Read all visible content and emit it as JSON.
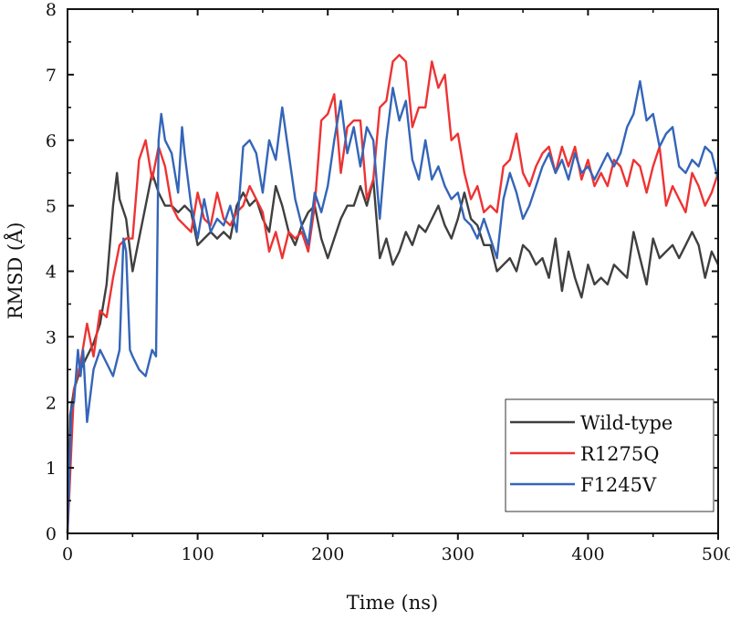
{
  "chart_data": {
    "type": "line",
    "title": "",
    "xlabel": "Time (ns)",
    "ylabel": "RMSD (Å)",
    "xlim": [
      0,
      500
    ],
    "ylim": [
      0,
      8
    ],
    "xticks": [
      "0",
      "100",
      "200",
      "300",
      "400",
      "500"
    ],
    "yticks": [
      "0",
      "1",
      "2",
      "3",
      "4",
      "5",
      "6",
      "7",
      "8"
    ],
    "grid": false,
    "legend_position": "bottom-right",
    "series": [
      {
        "name": "Wild-type",
        "color": "#3f3f3f",
        "x": [
          0,
          2,
          5,
          10,
          15,
          20,
          25,
          30,
          35,
          38,
          40,
          45,
          50,
          55,
          60,
          65,
          70,
          75,
          80,
          85,
          90,
          95,
          100,
          105,
          110,
          115,
          120,
          125,
          130,
          135,
          140,
          145,
          150,
          155,
          160,
          165,
          170,
          175,
          180,
          185,
          190,
          195,
          200,
          205,
          210,
          215,
          220,
          225,
          230,
          235,
          240,
          245,
          250,
          255,
          260,
          265,
          270,
          275,
          280,
          285,
          290,
          295,
          300,
          305,
          310,
          315,
          320,
          325,
          330,
          335,
          340,
          345,
          350,
          355,
          360,
          365,
          370,
          375,
          380,
          385,
          390,
          395,
          400,
          405,
          410,
          415,
          420,
          425,
          430,
          435,
          440,
          445,
          450,
          455,
          460,
          465,
          470,
          475,
          480,
          485,
          490,
          495,
          500
        ],
        "y": [
          0,
          1.8,
          2.2,
          2.5,
          2.7,
          2.9,
          3.2,
          3.8,
          5.0,
          5.5,
          5.1,
          4.8,
          4.0,
          4.5,
          5.0,
          5.5,
          5.2,
          5.0,
          5.0,
          4.9,
          5.0,
          4.9,
          4.4,
          4.5,
          4.6,
          4.5,
          4.6,
          4.5,
          5.0,
          5.2,
          5.0,
          5.1,
          4.8,
          4.6,
          5.3,
          5.0,
          4.6,
          4.4,
          4.7,
          4.9,
          5.0,
          4.5,
          4.2,
          4.5,
          4.8,
          5.0,
          5.0,
          5.3,
          5.0,
          5.4,
          4.2,
          4.5,
          4.1,
          4.3,
          4.6,
          4.4,
          4.7,
          4.6,
          4.8,
          5.0,
          4.7,
          4.5,
          4.8,
          5.2,
          4.8,
          4.7,
          4.4,
          4.4,
          4.0,
          4.1,
          4.2,
          4.0,
          4.4,
          4.3,
          4.1,
          4.2,
          3.9,
          4.5,
          3.7,
          4.3,
          3.9,
          3.6,
          4.1,
          3.8,
          3.9,
          3.8,
          4.1,
          4.0,
          3.9,
          4.6,
          4.2,
          3.8,
          4.5,
          4.2,
          4.3,
          4.4,
          4.2,
          4.4,
          4.6,
          4.4,
          3.9,
          4.3,
          4.1
        ]
      },
      {
        "name": "R1275Q",
        "color": "#ee3333",
        "x": [
          0,
          5,
          10,
          15,
          20,
          25,
          30,
          35,
          40,
          45,
          50,
          55,
          60,
          65,
          70,
          75,
          80,
          85,
          90,
          95,
          100,
          105,
          110,
          115,
          120,
          125,
          130,
          135,
          140,
          145,
          150,
          155,
          160,
          165,
          170,
          175,
          180,
          185,
          190,
          195,
          200,
          205,
          210,
          215,
          220,
          225,
          230,
          235,
          240,
          245,
          250,
          255,
          260,
          265,
          270,
          275,
          280,
          285,
          290,
          295,
          300,
          305,
          310,
          315,
          320,
          325,
          330,
          335,
          340,
          345,
          350,
          355,
          360,
          365,
          370,
          375,
          380,
          385,
          390,
          395,
          400,
          405,
          410,
          415,
          420,
          425,
          430,
          435,
          440,
          445,
          450,
          455,
          460,
          465,
          470,
          475,
          480,
          485,
          490,
          495,
          500
        ],
        "y": [
          0,
          2.2,
          2.6,
          3.2,
          2.7,
          3.4,
          3.3,
          3.9,
          4.4,
          4.5,
          4.5,
          5.7,
          6.0,
          5.4,
          5.9,
          5.6,
          5.0,
          4.8,
          4.7,
          4.6,
          5.2,
          4.8,
          4.7,
          5.2,
          4.8,
          4.7,
          4.9,
          5.0,
          5.3,
          5.1,
          4.9,
          4.3,
          4.6,
          4.2,
          4.6,
          4.5,
          4.6,
          4.3,
          5.0,
          6.3,
          6.4,
          6.7,
          5.5,
          6.2,
          6.3,
          6.3,
          5.1,
          5.4,
          6.5,
          6.6,
          7.2,
          7.3,
          7.2,
          6.2,
          6.5,
          6.5,
          7.2,
          6.8,
          7.0,
          6.0,
          6.1,
          5.5,
          5.1,
          5.3,
          4.9,
          5.0,
          4.9,
          5.6,
          5.7,
          6.1,
          5.5,
          5.3,
          5.6,
          5.8,
          5.9,
          5.5,
          5.9,
          5.6,
          5.9,
          5.4,
          5.7,
          5.3,
          5.5,
          5.3,
          5.7,
          5.6,
          5.3,
          5.7,
          5.6,
          5.2,
          5.6,
          5.9,
          5.0,
          5.3,
          5.1,
          4.9,
          5.5,
          5.3,
          5.0,
          5.2,
          5.5
        ]
      },
      {
        "name": "F1245V",
        "color": "#3465b8",
        "x": [
          0,
          3,
          5,
          8,
          10,
          12,
          15,
          20,
          25,
          30,
          35,
          40,
          43,
          45,
          48,
          50,
          55,
          60,
          65,
          68,
          70,
          72,
          75,
          80,
          85,
          88,
          90,
          95,
          100,
          105,
          110,
          115,
          120,
          125,
          130,
          135,
          140,
          145,
          150,
          155,
          160,
          165,
          170,
          175,
          180,
          185,
          190,
          195,
          200,
          205,
          210,
          215,
          220,
          225,
          230,
          235,
          240,
          245,
          250,
          255,
          260,
          265,
          270,
          275,
          280,
          285,
          290,
          295,
          300,
          305,
          310,
          315,
          320,
          325,
          330,
          335,
          340,
          345,
          350,
          355,
          360,
          365,
          370,
          375,
          380,
          385,
          390,
          395,
          400,
          405,
          410,
          415,
          420,
          425,
          430,
          435,
          440,
          445,
          450,
          455,
          460,
          465,
          470,
          475,
          480,
          485,
          490,
          495,
          500
        ],
        "y": [
          0,
          1.9,
          2.0,
          2.8,
          2.4,
          2.8,
          1.7,
          2.5,
          2.8,
          2.6,
          2.4,
          2.8,
          4.5,
          4.3,
          2.8,
          2.7,
          2.5,
          2.4,
          2.8,
          2.7,
          6.0,
          6.4,
          6.0,
          5.8,
          5.2,
          6.2,
          5.8,
          5.0,
          4.5,
          5.1,
          4.6,
          4.8,
          4.7,
          5.0,
          4.6,
          5.9,
          6.0,
          5.8,
          5.2,
          6.0,
          5.7,
          6.5,
          5.8,
          5.1,
          4.7,
          4.4,
          5.2,
          4.9,
          5.3,
          6.0,
          6.6,
          5.8,
          6.2,
          5.6,
          6.2,
          6.0,
          4.8,
          6.0,
          6.8,
          6.3,
          6.6,
          5.7,
          5.4,
          6.0,
          5.4,
          5.6,
          5.3,
          5.1,
          5.2,
          4.8,
          4.7,
          4.5,
          4.8,
          4.5,
          4.2,
          5.1,
          5.5,
          5.2,
          4.8,
          5.0,
          5.3,
          5.6,
          5.8,
          5.5,
          5.7,
          5.4,
          5.8,
          5.5,
          5.6,
          5.4,
          5.6,
          5.8,
          5.6,
          5.8,
          6.2,
          6.4,
          6.9,
          6.3,
          6.4,
          5.9,
          6.1,
          6.2,
          5.6,
          5.5,
          5.7,
          5.6,
          5.9,
          5.8,
          5.4
        ]
      }
    ]
  }
}
